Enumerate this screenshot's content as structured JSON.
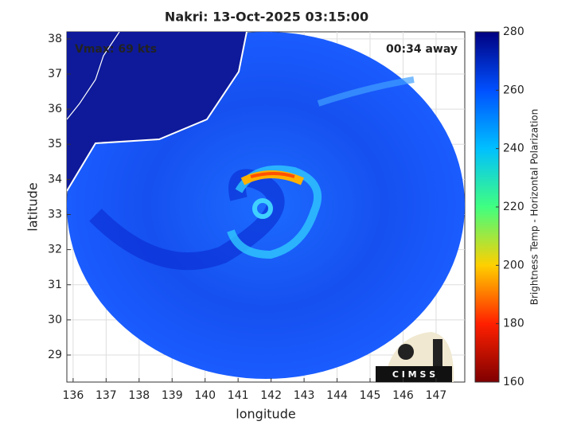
{
  "chart_data": {
    "type": "image",
    "title": "Nakri: 13-Oct-2025 03:15:00",
    "annotations": [
      "Vmax: 69 kts",
      "00:34 away"
    ],
    "xlabel": "longitude",
    "ylabel": "latitude",
    "xlim": [
      135.81,
      147.87
    ],
    "ylim": [
      28.23,
      38.2
    ],
    "xticks": [
      136,
      137,
      138,
      139,
      140,
      141,
      142,
      143,
      144,
      145,
      146,
      147
    ],
    "yticks": [
      29,
      30,
      31,
      32,
      33,
      34,
      35,
      36,
      37,
      38
    ],
    "grid": true,
    "colorbar": {
      "label": "Brightness Temp - Horizontal Polarization",
      "lim": [
        160,
        280
      ],
      "ticks": [
        160,
        180,
        200,
        220,
        240,
        260,
        280
      ],
      "colors": [
        "#7f0000",
        "#ff2000",
        "#ffd000",
        "#40ff80",
        "#00c0ff",
        "#0050ff",
        "#000080"
      ]
    },
    "logo": "C I M S S"
  }
}
